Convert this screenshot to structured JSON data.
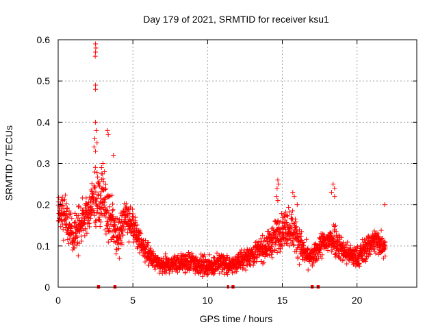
{
  "chart_data": {
    "type": "scatter",
    "title": "Day 179 of 2021, SRMTID for receiver ksu1",
    "xlabel": "GPS time / hours",
    "ylabel": "SRMTID / TECUs",
    "xlim": [
      0,
      24
    ],
    "ylim": [
      0,
      0.6
    ],
    "xticks": [
      "0",
      "5",
      "10",
      "15",
      "20"
    ],
    "xtick_values": [
      0,
      5,
      10,
      15,
      20
    ],
    "yticks": [
      "0",
      "0.1",
      "0.2",
      "0.3",
      "0.4",
      "0.5",
      "0.6"
    ],
    "ytick_values": [
      0,
      0.1,
      0.2,
      0.3,
      0.4,
      0.5,
      0.6
    ],
    "grid": true,
    "marker": "+",
    "color": "#ff0000",
    "series": [
      {
        "name": "SRMTID",
        "profile": [
          [
            0.0,
            0.18,
            0.05
          ],
          [
            0.5,
            0.17,
            0.05
          ],
          [
            1.0,
            0.12,
            0.04
          ],
          [
            1.5,
            0.15,
            0.05
          ],
          [
            2.0,
            0.18,
            0.05
          ],
          [
            2.5,
            0.22,
            0.07
          ],
          [
            3.0,
            0.2,
            0.07
          ],
          [
            3.5,
            0.17,
            0.06
          ],
          [
            4.0,
            0.12,
            0.04
          ],
          [
            4.5,
            0.17,
            0.04
          ],
          [
            5.0,
            0.15,
            0.04
          ],
          [
            5.5,
            0.11,
            0.03
          ],
          [
            6.0,
            0.08,
            0.025
          ],
          [
            6.5,
            0.06,
            0.02
          ],
          [
            7.0,
            0.05,
            0.02
          ],
          [
            8.0,
            0.06,
            0.02
          ],
          [
            9.0,
            0.06,
            0.025
          ],
          [
            10.0,
            0.05,
            0.02
          ],
          [
            11.0,
            0.06,
            0.025
          ],
          [
            11.5,
            0.05,
            0.02
          ],
          [
            12.0,
            0.06,
            0.02
          ],
          [
            13.0,
            0.08,
            0.025
          ],
          [
            14.0,
            0.1,
            0.03
          ],
          [
            14.5,
            0.12,
            0.04
          ],
          [
            15.0,
            0.14,
            0.04
          ],
          [
            15.5,
            0.15,
            0.05
          ],
          [
            16.0,
            0.12,
            0.04
          ],
          [
            16.5,
            0.08,
            0.03
          ],
          [
            17.0,
            0.07,
            0.02
          ],
          [
            17.5,
            0.1,
            0.03
          ],
          [
            18.0,
            0.11,
            0.03
          ],
          [
            18.5,
            0.12,
            0.04
          ],
          [
            19.0,
            0.09,
            0.03
          ],
          [
            19.5,
            0.08,
            0.025
          ],
          [
            20.0,
            0.07,
            0.025
          ],
          [
            20.5,
            0.09,
            0.03
          ],
          [
            21.0,
            0.11,
            0.03
          ],
          [
            21.5,
            0.11,
            0.03
          ],
          [
            21.9,
            0.1,
            0.03
          ]
        ],
        "peaks": [
          [
            2.5,
            0.59
          ],
          [
            2.52,
            0.58
          ],
          [
            2.5,
            0.57
          ],
          [
            2.48,
            0.56
          ],
          [
            2.5,
            0.49
          ],
          [
            2.5,
            0.48
          ],
          [
            2.5,
            0.4
          ],
          [
            2.55,
            0.38
          ],
          [
            2.45,
            0.36
          ],
          [
            2.6,
            0.35
          ],
          [
            2.4,
            0.34
          ],
          [
            2.5,
            0.33
          ],
          [
            3.3,
            0.38
          ],
          [
            3.35,
            0.37
          ],
          [
            3.7,
            0.32
          ],
          [
            3.0,
            0.3
          ],
          [
            2.9,
            0.29
          ],
          [
            3.1,
            0.28
          ],
          [
            14.7,
            0.26
          ],
          [
            14.75,
            0.25
          ],
          [
            14.65,
            0.24
          ],
          [
            14.6,
            0.22
          ],
          [
            14.7,
            0.21
          ],
          [
            18.4,
            0.25
          ],
          [
            18.5,
            0.24
          ],
          [
            18.3,
            0.23
          ],
          [
            18.5,
            0.22
          ],
          [
            21.85,
            0.2
          ],
          [
            15.7,
            0.23
          ],
          [
            15.8,
            0.22
          ],
          [
            16.0,
            0.2
          ]
        ],
        "sample_count": 2200
      }
    ],
    "data_gaps": [
      [
        2.6,
        2.8
      ],
      [
        3.7,
        3.9
      ],
      [
        11.3,
        11.4
      ],
      [
        11.6,
        11.8
      ],
      [
        16.9,
        17.1
      ],
      [
        17.3,
        17.5
      ]
    ]
  }
}
